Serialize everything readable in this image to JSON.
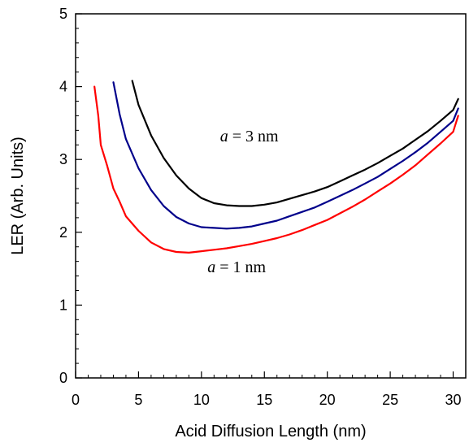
{
  "chart_data": {
    "type": "line",
    "xlabel": "Acid Diffusion Length (nm)",
    "ylabel": "LER (Arb. Units)",
    "xlim": [
      0,
      31
    ],
    "ylim": [
      0,
      5
    ],
    "x_ticks": [
      0,
      5,
      10,
      15,
      20,
      25,
      30
    ],
    "y_ticks": [
      0,
      1,
      2,
      3,
      4,
      5
    ],
    "x_tick_labels": [
      "0",
      "5",
      "10",
      "15",
      "20",
      "25",
      "30"
    ],
    "y_tick_labels": [
      "0",
      "1",
      "2",
      "3",
      "4",
      "5"
    ],
    "grid": false,
    "series": [
      {
        "color": "#000000",
        "points": [
          [
            4.5,
            4.08
          ],
          [
            5,
            3.75
          ],
          [
            6,
            3.33
          ],
          [
            7,
            3.02
          ],
          [
            8,
            2.78
          ],
          [
            9,
            2.6
          ],
          [
            10,
            2.47
          ],
          [
            11,
            2.4
          ],
          [
            12,
            2.37
          ],
          [
            13,
            2.36
          ],
          [
            14,
            2.36
          ],
          [
            15,
            2.38
          ],
          [
            16,
            2.41
          ],
          [
            17,
            2.46
          ],
          [
            18,
            2.51
          ],
          [
            19,
            2.56
          ],
          [
            20,
            2.62
          ],
          [
            21,
            2.7
          ],
          [
            22,
            2.78
          ],
          [
            23,
            2.86
          ],
          [
            24,
            2.95
          ],
          [
            25,
            3.05
          ],
          [
            26,
            3.15
          ],
          [
            27,
            3.27
          ],
          [
            28,
            3.39
          ],
          [
            29,
            3.53
          ],
          [
            30,
            3.68
          ],
          [
            30.4,
            3.83
          ]
        ]
      },
      {
        "color": "#00008b",
        "points": [
          [
            3,
            4.06
          ],
          [
            3.5,
            3.62
          ],
          [
            4,
            3.28
          ],
          [
            5,
            2.88
          ],
          [
            6,
            2.58
          ],
          [
            7,
            2.36
          ],
          [
            8,
            2.21
          ],
          [
            9,
            2.12
          ],
          [
            10,
            2.07
          ],
          [
            11,
            2.06
          ],
          [
            12,
            2.05
          ],
          [
            13,
            2.06
          ],
          [
            14,
            2.08
          ],
          [
            15,
            2.12
          ],
          [
            16,
            2.16
          ],
          [
            17,
            2.22
          ],
          [
            18,
            2.28
          ],
          [
            19,
            2.34
          ],
          [
            20,
            2.42
          ],
          [
            21,
            2.5
          ],
          [
            22,
            2.58
          ],
          [
            23,
            2.67
          ],
          [
            24,
            2.76
          ],
          [
            25,
            2.87
          ],
          [
            26,
            2.98
          ],
          [
            27,
            3.1
          ],
          [
            28,
            3.23
          ],
          [
            29,
            3.38
          ],
          [
            30,
            3.53
          ],
          [
            30.4,
            3.7
          ]
        ]
      },
      {
        "color": "#ff0000",
        "points": [
          [
            1.5,
            4.0
          ],
          [
            1.8,
            3.6
          ],
          [
            2,
            3.2
          ],
          [
            2.5,
            2.92
          ],
          [
            3,
            2.6
          ],
          [
            3.5,
            2.42
          ],
          [
            4,
            2.22
          ],
          [
            5,
            2.02
          ],
          [
            6,
            1.86
          ],
          [
            7,
            1.77
          ],
          [
            8,
            1.73
          ],
          [
            9,
            1.72
          ],
          [
            10,
            1.74
          ],
          [
            11,
            1.76
          ],
          [
            12,
            1.78
          ],
          [
            13,
            1.81
          ],
          [
            14,
            1.84
          ],
          [
            15,
            1.88
          ],
          [
            16,
            1.92
          ],
          [
            17,
            1.97
          ],
          [
            18,
            2.03
          ],
          [
            19,
            2.1
          ],
          [
            20,
            2.17
          ],
          [
            21,
            2.26
          ],
          [
            22,
            2.35
          ],
          [
            23,
            2.45
          ],
          [
            24,
            2.56
          ],
          [
            25,
            2.67
          ],
          [
            26,
            2.79
          ],
          [
            27,
            2.92
          ],
          [
            28,
            3.07
          ],
          [
            29,
            3.22
          ],
          [
            30,
            3.38
          ],
          [
            30.4,
            3.6
          ]
        ]
      }
    ],
    "annotations": [
      {
        "var": "a",
        "rest": " = 3 nm",
        "x": 13.8,
        "y": 3.25
      },
      {
        "var": "a",
        "rest": " = 1 nm",
        "x": 12.8,
        "y": 1.45
      }
    ]
  }
}
